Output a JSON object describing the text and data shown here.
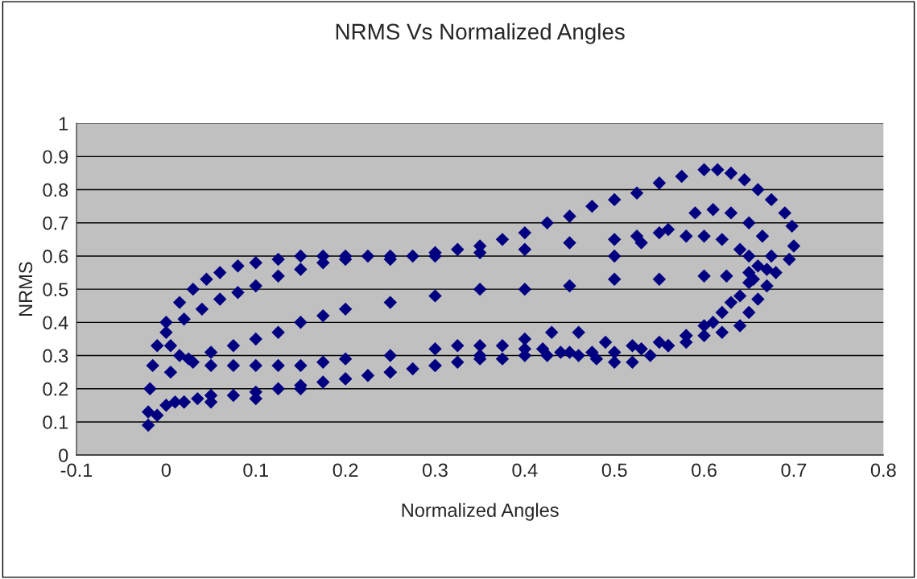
{
  "chart_data": {
    "type": "scatter",
    "title": "NRMS Vs Normalized Angles",
    "xlabel": "Normalized Angles",
    "ylabel": "NRMS",
    "x": [
      -0.02,
      -0.02,
      -0.018,
      -0.015,
      -0.01,
      0,
      0.015,
      0.03,
      0.045,
      0.06,
      0.08,
      0.1,
      0.125,
      0.15,
      0.175,
      0.2,
      0.225,
      0.25,
      0.275,
      0.3,
      0.325,
      0.35,
      0.375,
      0.4,
      0.425,
      0.45,
      0.475,
      0.5,
      0.525,
      0.55,
      0.575,
      0.6,
      0.615,
      0.63,
      0.645,
      0.66,
      0.675,
      0.69,
      0.698,
      0.7,
      0.695,
      0.68,
      0.67,
      0.66,
      0.65,
      0.64,
      0.62,
      0.6,
      0.58,
      0.56,
      0.53,
      0.5,
      0.475,
      0.45,
      0.425,
      0.4,
      0.375,
      0.35,
      0.325,
      0.3,
      0.275,
      0.25,
      0.225,
      0.2,
      0.175,
      0.15,
      0.125,
      0.1,
      0.075,
      0.05,
      0.035,
      0.02,
      0.01,
      0,
      -0.01,
      0,
      0.02,
      0.04,
      0.06,
      0.08,
      0.1,
      0.125,
      0.15,
      0.175,
      0.2,
      0.25,
      0.3,
      0.35,
      0.4,
      0.45,
      0.5,
      0.525,
      0.55,
      0.58,
      0.6,
      0.62,
      0.64,
      0.65,
      0.66,
      0.655,
      0.64,
      0.62,
      0.6,
      0.58,
      0.56,
      0.54,
      0.52,
      0.5,
      0.48,
      0.46,
      0.44,
      0.42,
      0.4,
      0.375,
      0.35,
      0.325,
      0.3,
      0.25,
      0.2,
      0.175,
      0.15,
      0.125,
      0.1,
      0.075,
      0.05,
      0.03,
      0.015,
      0.005,
      0.005,
      0.025,
      0.05,
      0.075,
      0.1,
      0.125,
      0.15,
      0.175,
      0.2,
      0.25,
      0.3,
      0.35,
      0.4,
      0.45,
      0.5,
      0.55,
      0.6,
      0.625,
      0.65,
      0.5,
      0.53,
      0.56,
      0.59,
      0.61,
      0.63,
      0.65,
      0.665,
      0.675,
      0.67,
      0.65,
      0.63,
      0.61,
      0.58,
      0.55,
      0.52,
      0.49,
      0.46,
      0.43,
      0.4,
      0.35,
      0.3,
      0.25,
      0.2,
      0.15,
      0.1,
      0.05,
      0.02
    ],
    "values": [
      0.09,
      0.13,
      0.2,
      0.27,
      0.33,
      0.4,
      0.46,
      0.5,
      0.53,
      0.55,
      0.57,
      0.58,
      0.59,
      0.6,
      0.6,
      0.6,
      0.6,
      0.6,
      0.6,
      0.61,
      0.62,
      0.63,
      0.65,
      0.67,
      0.7,
      0.72,
      0.75,
      0.77,
      0.79,
      0.82,
      0.84,
      0.86,
      0.86,
      0.85,
      0.83,
      0.8,
      0.77,
      0.73,
      0.69,
      0.63,
      0.59,
      0.55,
      0.51,
      0.47,
      0.43,
      0.39,
      0.37,
      0.36,
      0.34,
      0.33,
      0.32,
      0.31,
      0.31,
      0.31,
      0.3,
      0.3,
      0.29,
      0.29,
      0.28,
      0.27,
      0.26,
      0.25,
      0.24,
      0.23,
      0.22,
      0.21,
      0.2,
      0.19,
      0.18,
      0.18,
      0.17,
      0.16,
      0.16,
      0.15,
      0.12,
      0.37,
      0.41,
      0.44,
      0.47,
      0.49,
      0.51,
      0.54,
      0.56,
      0.58,
      0.59,
      0.59,
      0.6,
      0.61,
      0.62,
      0.64,
      0.65,
      0.66,
      0.67,
      0.66,
      0.66,
      0.65,
      0.62,
      0.6,
      0.57,
      0.53,
      0.48,
      0.43,
      0.39,
      0.36,
      0.33,
      0.3,
      0.28,
      0.28,
      0.29,
      0.3,
      0.31,
      0.32,
      0.32,
      0.33,
      0.33,
      0.33,
      0.32,
      0.3,
      0.29,
      0.28,
      0.27,
      0.27,
      0.27,
      0.27,
      0.27,
      0.28,
      0.3,
      0.33,
      0.25,
      0.29,
      0.31,
      0.33,
      0.35,
      0.37,
      0.4,
      0.42,
      0.44,
      0.46,
      0.48,
      0.5,
      0.5,
      0.51,
      0.53,
      0.53,
      0.54,
      0.54,
      0.55,
      0.6,
      0.64,
      0.68,
      0.73,
      0.74,
      0.73,
      0.7,
      0.66,
      0.6,
      0.56,
      0.52,
      0.46,
      0.4,
      0.36,
      0.34,
      0.33,
      0.34,
      0.37,
      0.37,
      0.35,
      0.3,
      0.27,
      0.25,
      0.23,
      0.2,
      0.17,
      0.16,
      0.16
    ],
    "color": "#000080",
    "marker": "diamond",
    "grid": "y",
    "legend": false,
    "xlim": [
      -0.1,
      0.8
    ],
    "ylim": [
      0,
      1
    ],
    "xticks": [
      -0.1,
      0,
      0.1,
      0.2,
      0.3,
      0.4,
      0.5,
      0.6,
      0.7,
      0.8
    ],
    "yticks": [
      0,
      0.1,
      0.2,
      0.3,
      0.4,
      0.5,
      0.6,
      0.7,
      0.8,
      0.9,
      1
    ]
  }
}
